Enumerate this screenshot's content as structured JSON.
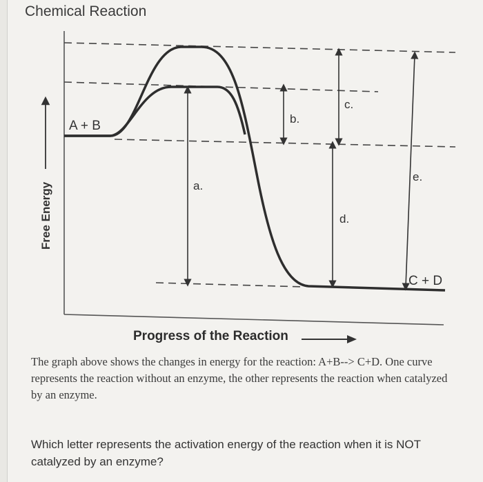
{
  "title": "Chemical Reaction",
  "diagram": {
    "reactants_label": "A + B",
    "products_label": "C + D",
    "y_axis_label": "Free Energy",
    "x_axis_label": "Progress of the Reaction",
    "arrow_labels": {
      "a": "a.",
      "b": "b.",
      "c": "c.",
      "d": "d.",
      "e": "e."
    }
  },
  "description": "The graph above shows the changes in energy for the reaction: A+B--> C+D. One curve represents the reaction without an enzyme, the other represents the reaction when catalyzed by an enzyme.",
  "question": "Which letter represents the activation energy of the reaction when it is NOT catalyzed by an enzyme?"
}
